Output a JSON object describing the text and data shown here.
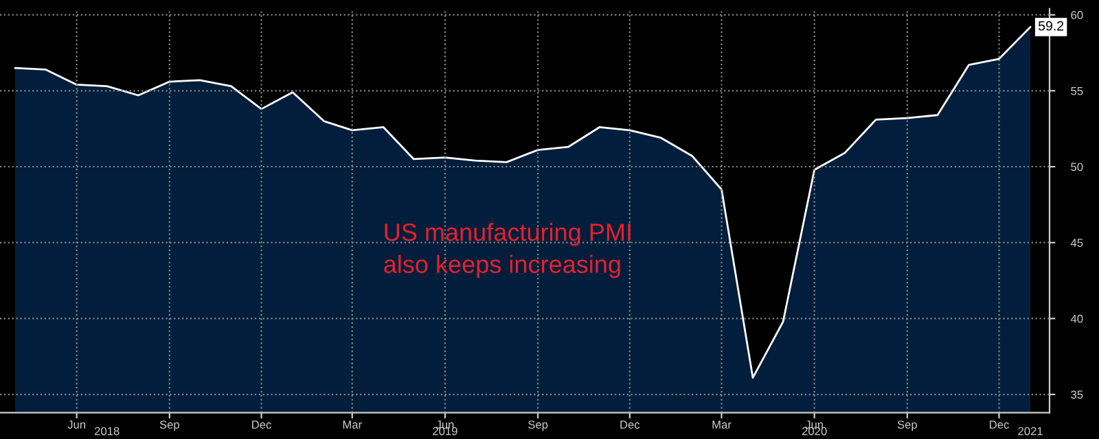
{
  "chart_data": {
    "type": "area",
    "x": [
      "2018-04",
      "2018-05",
      "2018-06",
      "2018-07",
      "2018-08",
      "2018-09",
      "2018-10",
      "2018-11",
      "2018-12",
      "2019-01",
      "2019-02",
      "2019-03",
      "2019-04",
      "2019-05",
      "2019-06",
      "2019-07",
      "2019-08",
      "2019-09",
      "2019-10",
      "2019-11",
      "2019-12",
      "2020-01",
      "2020-02",
      "2020-03",
      "2020-04",
      "2020-05",
      "2020-06",
      "2020-07",
      "2020-08",
      "2020-09",
      "2020-10",
      "2020-11",
      "2020-12",
      "2021-01"
    ],
    "series": [
      {
        "color": "#021e3c",
        "values": [
          56.5,
          56.4,
          55.4,
          55.3,
          54.7,
          55.6,
          55.7,
          55.3,
          53.8,
          54.9,
          53.0,
          52.4,
          52.6,
          50.5,
          50.6,
          50.4,
          50.3,
          51.1,
          51.3,
          52.6,
          52.4,
          51.9,
          50.7,
          48.5,
          36.1,
          39.8,
          49.8,
          50.9,
          53.1,
          53.2,
          53.4,
          56.7,
          57.1,
          59.2
        ],
        "value_labels": [
          null,
          null,
          null,
          null,
          null,
          null,
          null,
          null,
          null,
          null,
          null,
          null,
          null,
          null,
          null,
          null,
          null,
          null,
          null,
          null,
          null,
          null,
          null,
          null,
          null,
          null,
          null,
          null,
          null,
          null,
          null,
          null,
          null,
          "59.2"
        ]
      }
    ],
    "xlim": [
      "2018-03-17",
      "2021-01-20"
    ],
    "xticks": [
      {
        "value": "2018-06",
        "label": "Jun"
      },
      {
        "value": "2018-09",
        "label": "Sep"
      },
      {
        "value": "2018-12",
        "label": "Dec"
      },
      {
        "value": "2019-03",
        "label": "Mar"
      },
      {
        "value": "2019-06",
        "label": "Jun"
      },
      {
        "value": "2019-09",
        "label": "Sep"
      },
      {
        "value": "2019-12",
        "label": "Dec"
      },
      {
        "value": "2020-03",
        "label": "Mar"
      },
      {
        "value": "2020-06",
        "label": "Jun"
      },
      {
        "value": "2020-09",
        "label": "Sep"
      },
      {
        "value": "2020-12",
        "label": "Dec"
      }
    ],
    "x2lim": [
      "2018-03-17",
      "2021-01-20"
    ],
    "x2ticks": [
      {
        "value": "2018-07",
        "label": "2018"
      },
      {
        "value": "2019-06",
        "label": "2019"
      },
      {
        "value": "2020-06",
        "label": "2020"
      },
      {
        "value": "2021-01",
        "label": "2021"
      }
    ],
    "ylim": [
      33.8,
      60.4
    ],
    "yticks": [
      35,
      40,
      45,
      50,
      55,
      60
    ],
    "grid": true,
    "annotations": [
      "US manufacturing PMI\nalso keeps increasing"
    ]
  }
}
